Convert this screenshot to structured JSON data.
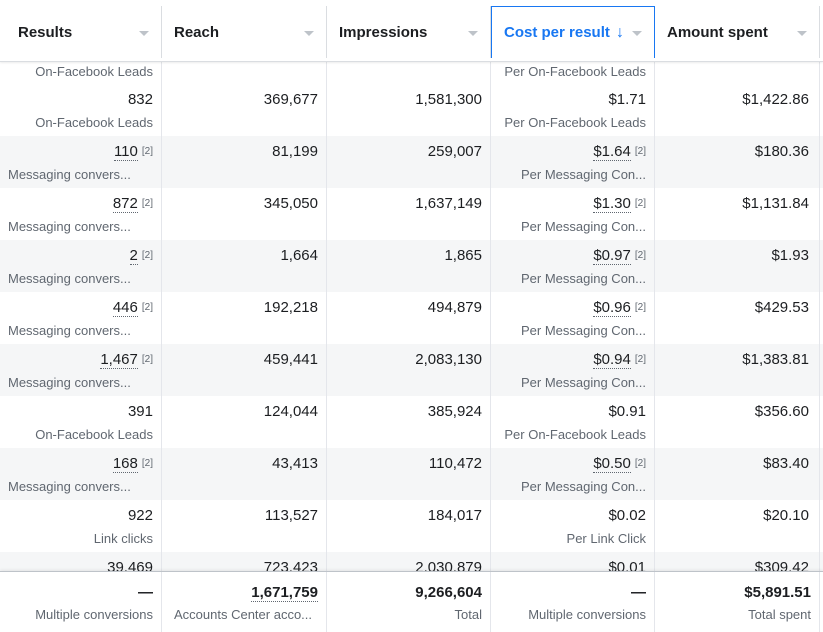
{
  "columns": [
    {
      "label": "Results"
    },
    {
      "label": "Reach"
    },
    {
      "label": "Impressions"
    },
    {
      "label": "Cost per result",
      "sort": "↓"
    },
    {
      "label": "Amount spent"
    }
  ],
  "top_partial": {
    "results_sub": "On-Facebook Leads",
    "cost_sub": "Per On-Facebook Leads"
  },
  "rows": [
    {
      "results": "832",
      "results_sub": "On-Facebook Leads",
      "reach": "369,677",
      "impressions": "1,581,300",
      "cost": "$1.71",
      "cost_sub": "Per On-Facebook Leads",
      "spent": "$1,422.86"
    },
    {
      "results": "110",
      "results_note": "[2]",
      "results_sub": "Messaging convers...",
      "reach": "81,199",
      "impressions": "259,007",
      "cost": "$1.64",
      "cost_note": "[2]",
      "cost_sub": "Per Messaging Con...",
      "spent": "$180.36"
    },
    {
      "results": "872",
      "results_note": "[2]",
      "results_sub": "Messaging convers...",
      "reach": "345,050",
      "impressions": "1,637,149",
      "cost": "$1.30",
      "cost_note": "[2]",
      "cost_sub": "Per Messaging Con...",
      "spent": "$1,131.84"
    },
    {
      "results": "2",
      "results_note": "[2]",
      "results_sub": "Messaging convers...",
      "reach": "1,664",
      "impressions": "1,865",
      "cost": "$0.97",
      "cost_note": "[2]",
      "cost_sub": "Per Messaging Con...",
      "spent": "$1.93"
    },
    {
      "results": "446",
      "results_note": "[2]",
      "results_sub": "Messaging convers...",
      "reach": "192,218",
      "impressions": "494,879",
      "cost": "$0.96",
      "cost_note": "[2]",
      "cost_sub": "Per Messaging Con...",
      "spent": "$429.53"
    },
    {
      "results": "1,467",
      "results_note": "[2]",
      "results_sub": "Messaging convers...",
      "reach": "459,441",
      "impressions": "2,083,130",
      "cost": "$0.94",
      "cost_note": "[2]",
      "cost_sub": "Per Messaging Con...",
      "spent": "$1,383.81"
    },
    {
      "results": "391",
      "results_sub": "On-Facebook Leads",
      "reach": "124,044",
      "impressions": "385,924",
      "cost": "$0.91",
      "cost_sub": "Per On-Facebook Leads",
      "spent": "$356.60"
    },
    {
      "results": "168",
      "results_note": "[2]",
      "results_sub": "Messaging convers...",
      "reach": "43,413",
      "impressions": "110,472",
      "cost": "$0.50",
      "cost_note": "[2]",
      "cost_sub": "Per Messaging Con...",
      "spent": "$83.40"
    },
    {
      "results": "922",
      "results_sub": "Link clicks",
      "reach": "113,527",
      "impressions": "184,017",
      "cost": "$0.02",
      "cost_sub": "Per Link Click",
      "spent": "$20.10"
    },
    {
      "results": "39,469",
      "results_sub": "",
      "reach": "723,423",
      "impressions": "2,030,879",
      "cost": "$0.01",
      "cost_sub": "",
      "spent": "$309.42"
    }
  ],
  "footer": {
    "results": "—",
    "results_sub": "Multiple conversions",
    "reach": "1,671,759",
    "reach_sub": "Accounts Center acco...",
    "impressions": "9,266,604",
    "impressions_sub": "Total",
    "cost": "—",
    "cost_sub": "Multiple conversions",
    "spent": "$5,891.51",
    "spent_sub": "Total spent"
  },
  "colors": {
    "accent": "#1877f2",
    "row_alt": "#f5f6f7",
    "border": "#dadde1"
  }
}
